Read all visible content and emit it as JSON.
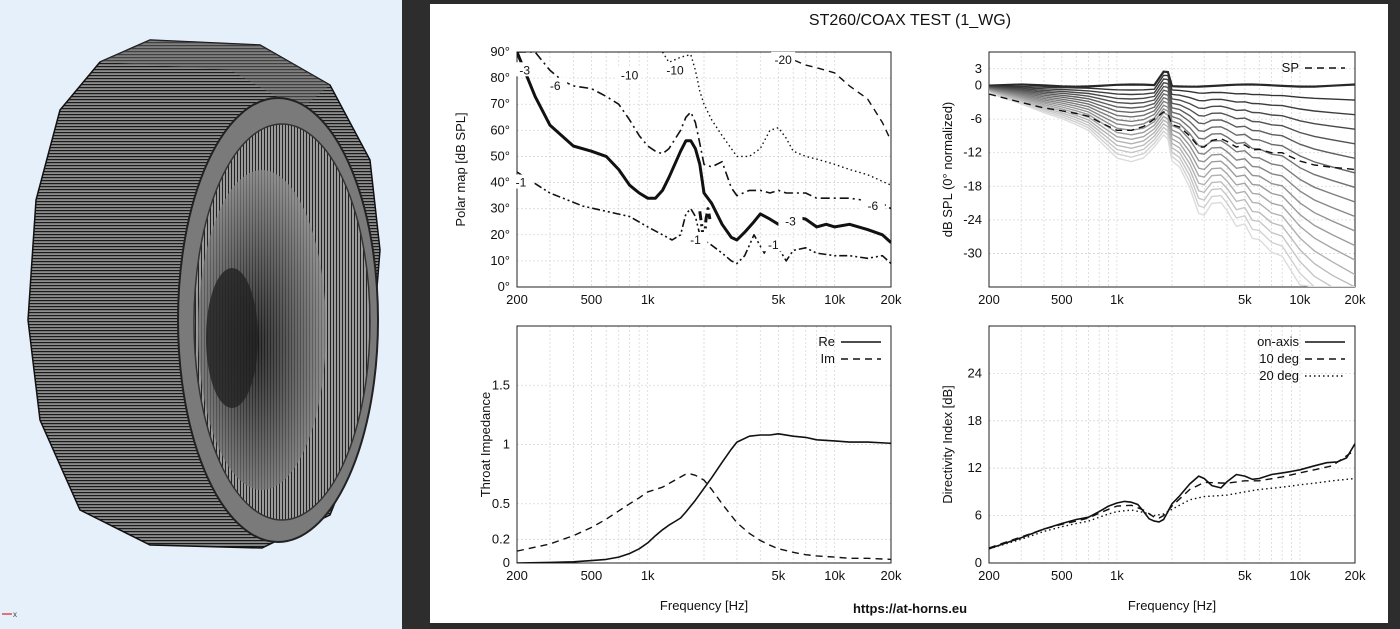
{
  "report": {
    "title": "ST260/COAX TEST (1_WG)",
    "url": "https://at-horns.eu",
    "axis_gizmo_label": "x"
  },
  "chart_data": [
    {
      "id": "polar",
      "type": "line",
      "scale_x": "log",
      "xlim": [
        200,
        20000
      ],
      "ylim": [
        0,
        90
      ],
      "xticks": [
        200,
        500,
        1000,
        5000,
        10000,
        20000
      ],
      "xtick_labels": [
        "200",
        "500",
        "1k",
        "5k",
        "10k",
        "20k"
      ],
      "yticks": [
        0,
        10,
        20,
        30,
        40,
        50,
        60,
        70,
        80,
        90
      ],
      "ytick_labels": [
        "0°",
        "10°",
        "20°",
        "30°",
        "40°",
        "50°",
        "60°",
        "70°",
        "80°",
        "90°"
      ],
      "xlabel": "",
      "ylabel": "Polar map [dB SPL]",
      "grid": true,
      "series": [
        {
          "name": "-1",
          "style": "dashdotdot",
          "x": [
            200,
            300,
            450,
            600,
            800,
            1000,
            1200,
            1350,
            1500,
            1600,
            1700,
            1800,
            1900,
            2000,
            2200,
            2500,
            2800,
            3000,
            3300,
            3700,
            4200,
            4500,
            5000,
            5500,
            6000,
            7000,
            8000,
            10000,
            12000,
            15000,
            18000,
            20000
          ],
          "y": [
            44,
            36,
            31,
            29,
            27,
            23,
            20,
            18,
            20,
            28,
            30,
            27,
            20,
            18,
            16,
            13,
            10,
            9,
            12,
            20,
            13,
            18,
            15,
            10,
            14,
            15,
            13,
            12,
            12,
            11,
            12,
            9
          ]
        },
        {
          "name": "-3",
          "style": "solid-bold",
          "x": [
            200,
            250,
            300,
            400,
            500,
            600,
            700,
            800,
            900,
            1000,
            1100,
            1200,
            1300,
            1500,
            1600,
            1700,
            1800,
            1900,
            2000,
            2200,
            2500,
            2800,
            3000,
            3300,
            3700,
            4000,
            4500,
            5000,
            5500,
            6000,
            7000,
            8000,
            9000,
            10000,
            12000,
            15000,
            18000,
            20000
          ],
          "y": [
            90,
            73,
            62,
            54,
            52,
            50,
            45,
            39,
            36,
            34,
            34,
            37,
            42,
            52,
            56,
            56,
            53,
            47,
            36,
            32,
            24,
            19,
            18,
            21,
            25,
            28,
            26,
            24,
            25,
            27,
            26,
            23,
            24,
            23,
            24,
            22,
            20,
            17
          ]
        },
        {
          "name": "-6",
          "style": "dashdot",
          "x": [
            200,
            250,
            300,
            350,
            400,
            500,
            600,
            700,
            800,
            900,
            1000,
            1100,
            1200,
            1300,
            1500,
            1600,
            1700,
            1800,
            1900,
            2000,
            2200,
            2500,
            2800,
            3000,
            3500,
            4000,
            4500,
            5000,
            5500,
            6000,
            7000,
            8000,
            10000,
            12000,
            15000,
            18000,
            20000
          ],
          "y": [
            90,
            90,
            83,
            79,
            77,
            76,
            73,
            70,
            64,
            58,
            54,
            52,
            51,
            53,
            60,
            65,
            67,
            63,
            55,
            47,
            46,
            48,
            38,
            35,
            37,
            37,
            36,
            37,
            36,
            36,
            36,
            34,
            34,
            34,
            33,
            32,
            30
          ]
        },
        {
          "name": "-10",
          "style": "dotted",
          "x": [
            1200,
            1300,
            1500,
            1700,
            1800,
            1900,
            2000,
            2200,
            2500,
            3000,
            3500,
            4000,
            4500,
            5000,
            5500,
            6000,
            7000,
            8000,
            10000,
            12000,
            15000,
            20000
          ],
          "y": [
            90,
            86,
            88,
            89,
            83,
            75,
            70,
            64,
            58,
            50,
            50,
            53,
            60,
            61,
            57,
            52,
            50,
            49,
            47,
            45,
            43,
            39
          ]
        },
        {
          "name": "-20",
          "style": "dashed",
          "x": [
            5500,
            6000,
            7000,
            8000,
            10000,
            12000,
            15000,
            18000,
            20000
          ],
          "y": [
            90,
            87,
            85,
            84,
            82,
            77,
            72,
            63,
            56
          ]
        },
        {
          "name": "-1",
          "style": "dashdot-bold",
          "x": [
            1900,
            1950,
            2000,
            2050,
            2100,
            2150
          ],
          "y": [
            29,
            23,
            16,
            26,
            30,
            26
          ]
        }
      ],
      "contour_labels": [
        "-3",
        "-6",
        "-10",
        "-10",
        "-20",
        "-1",
        "-3",
        "-1",
        "-6",
        "-1"
      ]
    },
    {
      "id": "spl",
      "type": "line",
      "scale_x": "log",
      "xlim": [
        200,
        20000
      ],
      "ylim": [
        -36,
        6
      ],
      "xticks": [
        200,
        500,
        1000,
        5000,
        10000,
        20000
      ],
      "xtick_labels": [
        "200",
        "500",
        "1k",
        "5k",
        "10k",
        "20k"
      ],
      "yticks": [
        3,
        0,
        -6,
        -12,
        -18,
        -24,
        -30
      ],
      "ytick_labels": [
        "3",
        "0",
        "-6",
        "-12",
        "-18",
        "-24",
        "-30"
      ],
      "xlabel": "",
      "ylabel": "dB SPL (0° normalized)",
      "grid": true,
      "legend_position": "top-right",
      "angle_series_count": 18,
      "series": [
        {
          "name": "SP",
          "style": "dashed",
          "x": [
            200,
            300,
            400,
            500,
            600,
            700,
            800,
            900,
            1000,
            1200,
            1400,
            1600,
            1800,
            1900,
            2000,
            2200,
            2500,
            2800,
            3000,
            3300,
            3700,
            4000,
            4500,
            5000,
            5500,
            6000,
            7000,
            8000,
            10000,
            12000,
            15000,
            20000
          ],
          "y": [
            -1.5,
            -3,
            -4,
            -4.5,
            -5,
            -5.5,
            -6.5,
            -7.3,
            -8,
            -8,
            -7.3,
            -6,
            -4.7,
            -5,
            -7,
            -7.4,
            -9,
            -11,
            -11,
            -9.8,
            -9.5,
            -10,
            -11,
            -10.6,
            -11.5,
            -11.4,
            -12,
            -12,
            -13.5,
            -14.2,
            -14.6,
            -15
          ]
        }
      ]
    },
    {
      "id": "impedance",
      "type": "line",
      "scale_x": "log",
      "xlim": [
        200,
        20000
      ],
      "ylim": [
        0,
        2
      ],
      "xticks": [
        200,
        500,
        1000,
        5000,
        10000,
        20000
      ],
      "xtick_labels": [
        "200",
        "500",
        "1k",
        "5k",
        "10k",
        "20k"
      ],
      "yticks": [
        0,
        0.2,
        0.5,
        1,
        1.5
      ],
      "ytick_labels": [
        "0",
        "0.2",
        "0.5",
        "1",
        "1.5"
      ],
      "xlabel": "Frequency [Hz]",
      "ylabel": "Throat Impedance",
      "grid": true,
      "legend_position": "top-right",
      "series": [
        {
          "name": "Re",
          "style": "solid",
          "x": [
            200,
            300,
            400,
            500,
            600,
            700,
            800,
            900,
            1000,
            1100,
            1200,
            1300,
            1400,
            1500,
            1600,
            1800,
            2000,
            2200,
            2500,
            2800,
            3000,
            3500,
            4000,
            4500,
            5000,
            6000,
            7000,
            8000,
            10000,
            12000,
            15000,
            20000
          ],
          "y": [
            0,
            0.005,
            0.01,
            0.02,
            0.03,
            0.05,
            0.08,
            0.12,
            0.17,
            0.23,
            0.28,
            0.32,
            0.35,
            0.38,
            0.43,
            0.53,
            0.63,
            0.72,
            0.85,
            0.96,
            1.02,
            1.07,
            1.08,
            1.08,
            1.09,
            1.07,
            1.06,
            1.04,
            1.03,
            1.02,
            1.02,
            1.01
          ]
        },
        {
          "name": "Im",
          "style": "dashed",
          "x": [
            200,
            300,
            400,
            500,
            600,
            700,
            800,
            900,
            1000,
            1100,
            1200,
            1400,
            1600,
            1700,
            1800,
            2000,
            2200,
            2500,
            2800,
            3000,
            3500,
            4000,
            4500,
            5000,
            6000,
            7000,
            8000,
            10000,
            12000,
            15000,
            20000
          ],
          "y": [
            0.1,
            0.16,
            0.23,
            0.3,
            0.37,
            0.44,
            0.5,
            0.55,
            0.6,
            0.62,
            0.64,
            0.7,
            0.75,
            0.75,
            0.74,
            0.7,
            0.62,
            0.5,
            0.4,
            0.34,
            0.25,
            0.19,
            0.15,
            0.12,
            0.09,
            0.07,
            0.06,
            0.05,
            0.04,
            0.04,
            0.03
          ]
        }
      ]
    },
    {
      "id": "directivity",
      "type": "line",
      "scale_x": "log",
      "xlim": [
        200,
        20000
      ],
      "ylim": [
        0,
        30
      ],
      "xticks": [
        200,
        500,
        1000,
        5000,
        10000,
        20000
      ],
      "xtick_labels": [
        "200",
        "500",
        "1k",
        "5k",
        "10k",
        "20k"
      ],
      "yticks": [
        0,
        6,
        12,
        18,
        24
      ],
      "ytick_labels": [
        "0",
        "6",
        "12",
        "18",
        "24"
      ],
      "xlabel": "Frequency [Hz]",
      "ylabel": "Directivity Index [dB]",
      "grid": true,
      "legend_position": "top-right",
      "series": [
        {
          "name": "on-axis",
          "style": "solid",
          "x": [
            200,
            300,
            400,
            500,
            600,
            700,
            800,
            900,
            1000,
            1100,
            1200,
            1300,
            1400,
            1500,
            1600,
            1700,
            1800,
            1900,
            2000,
            2200,
            2500,
            2800,
            3000,
            3300,
            3700,
            4000,
            4500,
            5000,
            5500,
            6000,
            7000,
            8000,
            9000,
            10000,
            12000,
            14000,
            16000,
            18000,
            20000
          ],
          "y": [
            1.8,
            3.2,
            4.3,
            5.0,
            5.5,
            5.8,
            6.5,
            7.2,
            7.6,
            7.8,
            7.7,
            7.4,
            6.5,
            5.6,
            5.3,
            5.2,
            5.5,
            6.5,
            7.5,
            8.5,
            10,
            11,
            10.7,
            9.8,
            9.5,
            10.3,
            11.2,
            11,
            10.6,
            10.7,
            11.2,
            11.4,
            11.6,
            11.8,
            12.3,
            12.7,
            12.8,
            13.3,
            15.1
          ]
        },
        {
          "name": "10 deg",
          "style": "dashed",
          "x": [
            200,
            300,
            400,
            500,
            600,
            700,
            800,
            900,
            1000,
            1200,
            1400,
            1600,
            1700,
            1800,
            1900,
            2000,
            2500,
            3000,
            4000,
            5000,
            6000,
            8000,
            10000,
            12000,
            15000,
            20000
          ],
          "y": [
            1.9,
            3.3,
            4.3,
            4.9,
            5.3,
            5.7,
            6.3,
            6.8,
            7.2,
            7.3,
            6.7,
            5.8,
            5.7,
            6.0,
            6.6,
            7.2,
            9.3,
            10.2,
            10.1,
            10.4,
            10.4,
            10.9,
            11.4,
            11.8,
            12.3,
            14.3
          ]
        },
        {
          "name": "20 deg",
          "style": "dotted",
          "x": [
            200,
            300,
            400,
            500,
            600,
            700,
            800,
            900,
            1000,
            1200,
            1400,
            1600,
            1800,
            2000,
            2500,
            3000,
            4000,
            5000,
            6000,
            8000,
            10000,
            12000,
            15000,
            20000
          ],
          "y": [
            1.8,
            3.0,
            4.0,
            4.6,
            5.0,
            5.3,
            5.8,
            6.2,
            6.5,
            6.7,
            6.4,
            6.0,
            6.2,
            6.8,
            8.0,
            8.4,
            8.6,
            9.0,
            9.3,
            9.6,
            9.9,
            10.1,
            10.4,
            10.7
          ]
        }
      ]
    }
  ]
}
